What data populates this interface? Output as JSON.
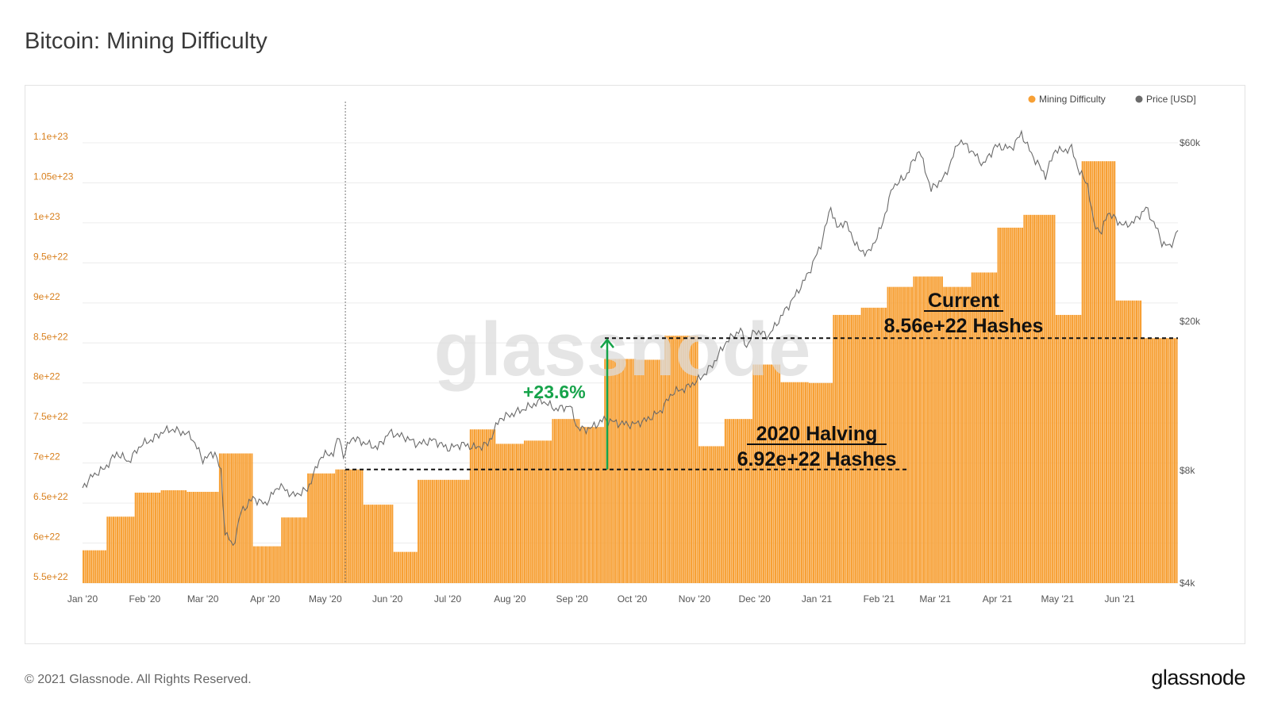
{
  "title": "Bitcoin: Mining Difficulty",
  "footer": {
    "copyright": "© 2021 Glassnode. All Rights Reserved.",
    "brand": "glassnode"
  },
  "watermark": "glassnode",
  "colors": {
    "bar": "#f7a035",
    "bar_stroke": "#ffffff",
    "price_line": "#6b6b6b",
    "grid": "#ececec",
    "left_axis_text": "#d9801e",
    "right_axis_text": "#555555",
    "annotation_green": "#16a34a",
    "watermark": "#dcdcdc"
  },
  "chart_data": {
    "type": "bar",
    "legend": [
      {
        "name": "Mining Difficulty",
        "color": "#f7a035"
      },
      {
        "name": "Price [USD]",
        "color": "#6b6b6b"
      }
    ],
    "legend_position": "top-right",
    "grid": true,
    "x_range": [
      "2020-01-01",
      "2021-06-30"
    ],
    "x_ticks": [
      "Jan '20",
      "Feb '20",
      "Mar '20",
      "Apr '20",
      "May '20",
      "Jun '20",
      "Jul '20",
      "Aug '20",
      "Sep '20",
      "Oct '20",
      "Nov '20",
      "Dec '20",
      "Jan '21",
      "Feb '21",
      "Mar '21",
      "Apr '21",
      "May '21",
      "Jun '21"
    ],
    "x_tick_dates": [
      "2020-01-01",
      "2020-02-01",
      "2020-03-01",
      "2020-04-01",
      "2020-05-01",
      "2020-06-01",
      "2020-07-01",
      "2020-08-01",
      "2020-09-01",
      "2020-10-01",
      "2020-11-01",
      "2020-12-01",
      "2021-01-01",
      "2021-02-01",
      "2021-03-01",
      "2021-04-01",
      "2021-05-01",
      "2021-06-01"
    ],
    "left_axis": {
      "ylim": [
        5.5e+22,
        1.1e+23
      ],
      "ticks": [
        5.5e+22,
        6e+22,
        6.5e+22,
        7e+22,
        7.5e+22,
        8e+22,
        8.5e+22,
        9e+22,
        9.5e+22,
        1e+23,
        1.05e+23,
        1.1e+23
      ],
      "tick_labels": [
        "5.5e+22",
        "6e+22",
        "6.5e+22",
        "7e+22",
        "7.5e+22",
        "8e+22",
        "8.5e+22",
        "9e+22",
        "9.5e+22",
        "1e+23",
        "1.05e+23",
        "1.1e+23"
      ]
    },
    "right_axis": {
      "scale": "log",
      "ylim": [
        4000,
        60000
      ],
      "ticks": [
        4000,
        8000,
        20000,
        60000
      ],
      "tick_labels": [
        "$4k",
        "$8k",
        "$20k",
        "$60k"
      ]
    },
    "difficulty_epochs": [
      {
        "start": "2020-01-01",
        "end": "2020-01-13",
        "value": 5.91e+22
      },
      {
        "start": "2020-01-13",
        "end": "2020-01-27",
        "value": 6.33e+22
      },
      {
        "start": "2020-01-27",
        "end": "2020-02-09",
        "value": 6.63e+22
      },
      {
        "start": "2020-02-09",
        "end": "2020-02-22",
        "value": 6.66e+22
      },
      {
        "start": "2020-02-22",
        "end": "2020-03-09",
        "value": 6.64e+22
      },
      {
        "start": "2020-03-09",
        "end": "2020-03-26",
        "value": 7.12e+22
      },
      {
        "start": "2020-03-26",
        "end": "2020-04-09",
        "value": 5.96e+22
      },
      {
        "start": "2020-04-09",
        "end": "2020-04-22",
        "value": 6.32e+22
      },
      {
        "start": "2020-04-22",
        "end": "2020-05-06",
        "value": 6.87e+22
      },
      {
        "start": "2020-05-06",
        "end": "2020-05-20",
        "value": 6.92e+22
      },
      {
        "start": "2020-05-20",
        "end": "2020-06-04",
        "value": 6.48e+22
      },
      {
        "start": "2020-06-04",
        "end": "2020-06-16",
        "value": 5.89e+22
      },
      {
        "start": "2020-06-16",
        "end": "2020-07-12",
        "value": 6.79e+22
      },
      {
        "start": "2020-07-12",
        "end": "2020-07-25",
        "value": 7.42e+22
      },
      {
        "start": "2020-07-25",
        "end": "2020-08-08",
        "value": 7.24e+22
      },
      {
        "start": "2020-08-08",
        "end": "2020-08-22",
        "value": 7.28e+22
      },
      {
        "start": "2020-08-22",
        "end": "2020-09-05",
        "value": 7.55e+22
      },
      {
        "start": "2020-09-05",
        "end": "2020-09-17",
        "value": 7.45e+22
      },
      {
        "start": "2020-09-17",
        "end": "2020-10-03",
        "value": 8.3e+22
      },
      {
        "start": "2020-10-03",
        "end": "2020-10-17",
        "value": 8.29e+22
      },
      {
        "start": "2020-10-17",
        "end": "2020-11-03",
        "value": 8.59e+22
      },
      {
        "start": "2020-11-03",
        "end": "2020-11-16",
        "value": 7.21e+22
      },
      {
        "start": "2020-11-16",
        "end": "2020-11-30",
        "value": 7.55e+22
      },
      {
        "start": "2020-11-30",
        "end": "2020-12-14",
        "value": 8.23e+22
      },
      {
        "start": "2020-12-14",
        "end": "2020-12-28",
        "value": 8.01e+22
      },
      {
        "start": "2020-12-28",
        "end": "2021-01-09",
        "value": 8e+22
      },
      {
        "start": "2021-01-09",
        "end": "2021-01-23",
        "value": 8.85e+22
      },
      {
        "start": "2021-01-23",
        "end": "2021-02-05",
        "value": 8.94e+22
      },
      {
        "start": "2021-02-05",
        "end": "2021-02-18",
        "value": 9.2e+22
      },
      {
        "start": "2021-02-18",
        "end": "2021-03-05",
        "value": 9.33e+22
      },
      {
        "start": "2021-03-05",
        "end": "2021-03-19",
        "value": 9.2e+22
      },
      {
        "start": "2021-03-19",
        "end": "2021-04-01",
        "value": 9.38e+22
      },
      {
        "start": "2021-04-01",
        "end": "2021-04-14",
        "value": 9.94e+22
      },
      {
        "start": "2021-04-14",
        "end": "2021-04-30",
        "value": 1.01e+23
      },
      {
        "start": "2021-04-30",
        "end": "2021-05-13",
        "value": 8.85e+22
      },
      {
        "start": "2021-05-13",
        "end": "2021-05-30",
        "value": 1.077e+23
      },
      {
        "start": "2021-05-30",
        "end": "2021-06-12",
        "value": 9.03e+22
      },
      {
        "start": "2021-06-12",
        "end": "2021-06-30",
        "value": 8.56e+22
      }
    ],
    "price_usd": [
      [
        "2020-01-01",
        7200
      ],
      [
        "2020-01-06",
        7750
      ],
      [
        "2020-01-12",
        8100
      ],
      [
        "2020-01-18",
        8900
      ],
      [
        "2020-01-24",
        8450
      ],
      [
        "2020-01-30",
        9350
      ],
      [
        "2020-02-05",
        9700
      ],
      [
        "2020-02-10",
        10150
      ],
      [
        "2020-02-14",
        10300
      ],
      [
        "2020-02-19",
        10150
      ],
      [
        "2020-02-24",
        9900
      ],
      [
        "2020-03-01",
        8550
      ],
      [
        "2020-03-07",
        8950
      ],
      [
        "2020-03-10",
        7900
      ],
      [
        "2020-03-12",
        5500
      ],
      [
        "2020-03-16",
        5000
      ],
      [
        "2020-03-20",
        6200
      ],
      [
        "2020-03-26",
        6750
      ],
      [
        "2020-04-01",
        6500
      ],
      [
        "2020-04-08",
        7300
      ],
      [
        "2020-04-15",
        6850
      ],
      [
        "2020-04-22",
        7100
      ],
      [
        "2020-04-29",
        8750
      ],
      [
        "2020-05-05",
        8900
      ],
      [
        "2020-05-08",
        9900
      ],
      [
        "2020-05-10",
        8700
      ],
      [
        "2020-05-14",
        9800
      ],
      [
        "2020-05-20",
        9500
      ],
      [
        "2020-05-27",
        9200
      ],
      [
        "2020-06-02",
        10100
      ],
      [
        "2020-06-10",
        9800
      ],
      [
        "2020-06-16",
        9400
      ],
      [
        "2020-06-24",
        9650
      ],
      [
        "2020-07-01",
        9150
      ],
      [
        "2020-07-08",
        9400
      ],
      [
        "2020-07-15",
        9200
      ],
      [
        "2020-07-21",
        9400
      ],
      [
        "2020-07-27",
        11000
      ],
      [
        "2020-08-02",
        11300
      ],
      [
        "2020-08-10",
        11800
      ],
      [
        "2020-08-17",
        12300
      ],
      [
        "2020-08-24",
        11650
      ],
      [
        "2020-08-31",
        11900
      ],
      [
        "2020-09-04",
        10300
      ],
      [
        "2020-09-10",
        10350
      ],
      [
        "2020-09-17",
        10950
      ],
      [
        "2020-09-24",
        10700
      ],
      [
        "2020-10-01",
        10600
      ],
      [
        "2020-10-08",
        10900
      ],
      [
        "2020-10-15",
        11500
      ],
      [
        "2020-10-21",
        12900
      ],
      [
        "2020-10-28",
        13300
      ],
      [
        "2020-11-04",
        14100
      ],
      [
        "2020-11-10",
        15300
      ],
      [
        "2020-11-17",
        17700
      ],
      [
        "2020-11-24",
        19000
      ],
      [
        "2020-11-27",
        17100
      ],
      [
        "2020-12-01",
        18900
      ],
      [
        "2020-12-08",
        18300
      ],
      [
        "2020-12-16",
        21300
      ],
      [
        "2020-12-22",
        23800
      ],
      [
        "2020-12-28",
        27000
      ],
      [
        "2021-01-03",
        32000
      ],
      [
        "2021-01-08",
        40500
      ],
      [
        "2021-01-11",
        35500
      ],
      [
        "2021-01-15",
        37000
      ],
      [
        "2021-01-22",
        31000
      ],
      [
        "2021-01-27",
        30500
      ],
      [
        "2021-02-02",
        35500
      ],
      [
        "2021-02-08",
        46000
      ],
      [
        "2021-02-14",
        48500
      ],
      [
        "2021-02-21",
        57500
      ],
      [
        "2021-02-27",
        45000
      ],
      [
        "2021-03-06",
        48900
      ],
      [
        "2021-03-13",
        61000
      ],
      [
        "2021-03-18",
        58000
      ],
      [
        "2021-03-25",
        52500
      ],
      [
        "2021-03-31",
        58800
      ],
      [
        "2021-04-08",
        58000
      ],
      [
        "2021-04-13",
        63500
      ],
      [
        "2021-04-18",
        56000
      ],
      [
        "2021-04-25",
        49000
      ],
      [
        "2021-04-30",
        57800
      ],
      [
        "2021-05-03",
        57000
      ],
      [
        "2021-05-08",
        58000
      ],
      [
        "2021-05-12",
        50000
      ],
      [
        "2021-05-16",
        46500
      ],
      [
        "2021-05-19",
        36500
      ],
      [
        "2021-05-23",
        34500
      ],
      [
        "2021-05-26",
        39200
      ],
      [
        "2021-05-31",
        37000
      ],
      [
        "2021-06-04",
        36000
      ],
      [
        "2021-06-09",
        37300
      ],
      [
        "2021-06-14",
        40200
      ],
      [
        "2021-06-19",
        35800
      ],
      [
        "2021-06-22",
        32500
      ],
      [
        "2021-06-26",
        31600
      ],
      [
        "2021-06-30",
        35000
      ]
    ],
    "halving_date": "2020-05-11",
    "annotations": {
      "halving_title": "2020 Halving",
      "halving_value_label": "6.92e+22 Hashes",
      "halving_value": 6.92e+22,
      "current_title": "Current",
      "current_value_label": "8.56e+22 Hashes",
      "current_value": 8.56e+22,
      "change_label": "+23.6%"
    }
  }
}
